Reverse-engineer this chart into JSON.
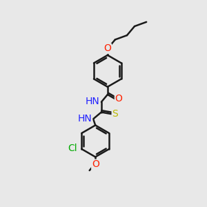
{
  "bg_color": "#e8e8e8",
  "line_color": "#1a1a1a",
  "bond_width": 1.8,
  "font_size": 10,
  "atom_colors": {
    "O": "#ff2000",
    "N": "#2020ff",
    "S": "#b8b800",
    "Cl": "#00aa00",
    "C": "#1a1a1a"
  }
}
